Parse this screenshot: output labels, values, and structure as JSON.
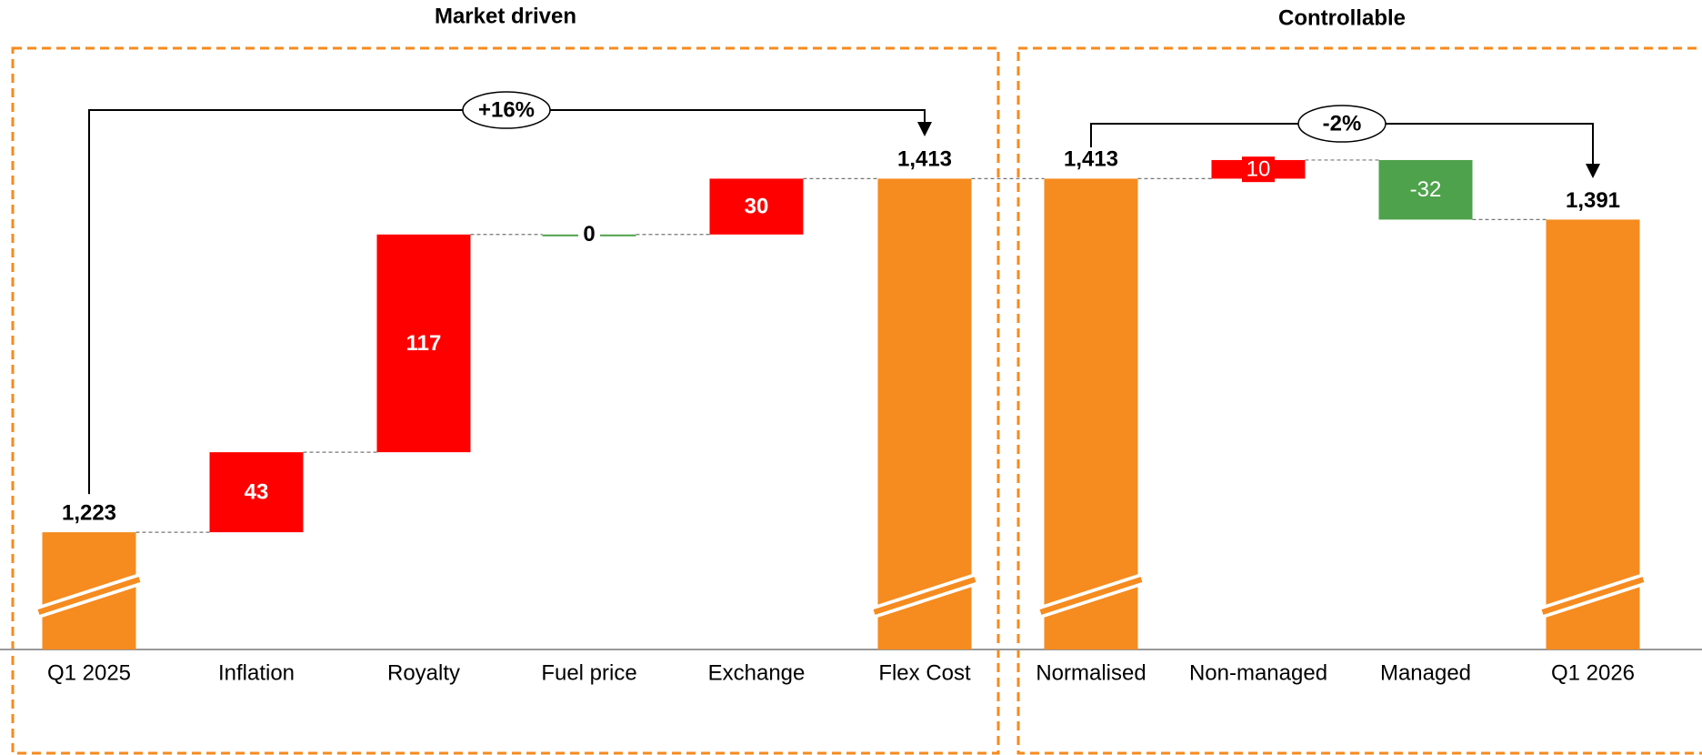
{
  "chart_data": {
    "type": "waterfall",
    "group_labels": [
      "Market driven",
      "Controllable"
    ],
    "annotations": [
      "+16%",
      "-2%"
    ],
    "categories": [
      "Q1 2025",
      "Inflation",
      "Royalty",
      "Fuel price",
      "Exchange",
      "Flex Cost",
      "Normalised",
      "Non-managed",
      "Managed",
      "Q1 2026"
    ],
    "values": [
      1223,
      43,
      117,
      0,
      30,
      1413,
      1413,
      10,
      -32,
      1391
    ],
    "value_labels": [
      "1,223",
      "43",
      "117",
      "0",
      "30",
      "1,413",
      "1,413",
      "10",
      "-32",
      "1,391"
    ],
    "measure": [
      "total",
      "relative",
      "relative",
      "relative",
      "relative",
      "total",
      "total",
      "relative",
      "relative",
      "total"
    ],
    "colors": {
      "total": "#f68b1f",
      "increase": "#ff0000",
      "decrease": "#4ea24b"
    },
    "ylim": [
      1160,
      1509
    ]
  }
}
